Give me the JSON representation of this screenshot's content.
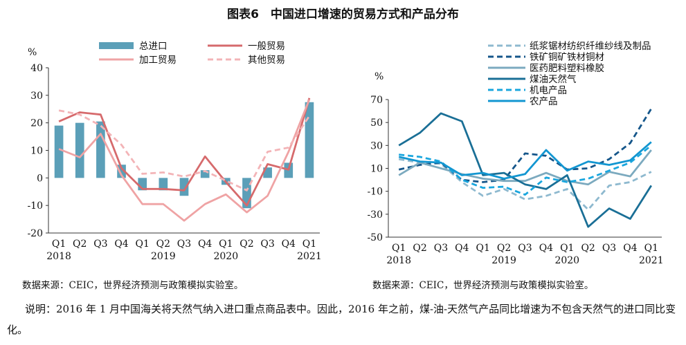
{
  "figure": {
    "title": "图表6　中国进口增速的贸易方式和产品分布",
    "note": "说明：2016 年 1 月中国海关将天然气纳入进口重点商品表中。因此，2016 年之前，煤-油-天然气产品同比增速为不包含天然气的进口同比变化。"
  },
  "chart_data": [
    {
      "type": "bar+line",
      "unit": "%",
      "categories": [
        "Q1",
        "Q2",
        "Q3",
        "Q4",
        "Q1",
        "Q2",
        "Q3",
        "Q4",
        "Q1",
        "Q2",
        "Q3",
        "Q4",
        "Q1"
      ],
      "year_labels": [
        {
          "index": 0,
          "label": "2018"
        },
        {
          "index": 5,
          "label": "2019"
        },
        {
          "index": 8,
          "label": "2020"
        },
        {
          "index": 12,
          "label": "2021"
        }
      ],
      "ylim": [
        -20,
        40
      ],
      "yticks": [
        -20,
        -10,
        0,
        10,
        20,
        30,
        40
      ],
      "bars": {
        "name": "总进口",
        "color": "#5b9fb8",
        "values": [
          19,
          20,
          20.5,
          4.8,
          -4.5,
          -4.5,
          -6.5,
          2.8,
          -2.5,
          -11,
          3.8,
          5.5,
          27.5
        ]
      },
      "series": [
        {
          "name": "一般贸易",
          "color": "#d66a6c",
          "dash": false,
          "values": [
            20.5,
            23.8,
            23,
            3.5,
            -4,
            -4,
            -4.5,
            7.8,
            -1.5,
            -10,
            5,
            3,
            29
          ]
        },
        {
          "name": "加工贸易",
          "color": "#efa3a4",
          "dash": false,
          "values": [
            10.5,
            7.5,
            16,
            1,
            -9.5,
            -9.5,
            -15.5,
            -9.5,
            -6,
            -12.5,
            -6.5,
            9.5,
            28.5
          ]
        },
        {
          "name": "其他贸易",
          "color": "#f3b4b7",
          "dash": true,
          "values": [
            24.5,
            23,
            19,
            12,
            1.5,
            2,
            0.5,
            2.5,
            -1,
            -4.5,
            9.5,
            11,
            22.5
          ]
        }
      ],
      "legend": [
        "总进口",
        "一般贸易",
        "加工贸易",
        "其他贸易"
      ],
      "source": "数据来源：CEIC，世界经济预测与政策模拟实验室。"
    },
    {
      "type": "line",
      "unit": "%",
      "categories": [
        "Q1",
        "Q2",
        "Q3",
        "Q4",
        "Q1",
        "Q2",
        "Q3",
        "Q4",
        "Q1",
        "Q2",
        "Q3",
        "Q4",
        "Q1"
      ],
      "year_labels": [
        {
          "index": 0,
          "label": "2018"
        },
        {
          "index": 5,
          "label": "2019"
        },
        {
          "index": 8,
          "label": "2020"
        },
        {
          "index": 12,
          "label": "2021"
        }
      ],
      "ylim": [
        -50,
        70
      ],
      "yticks": [
        -50,
        -30,
        -10,
        10,
        30,
        50,
        70
      ],
      "series": [
        {
          "name": "纸浆锯材纺织纤维纱线及制品",
          "color": "#8eb9cf",
          "dash": true,
          "values": [
            18,
            15,
            14,
            -2,
            -14,
            -8,
            -17,
            -14,
            -8,
            -26,
            -5,
            -2,
            7
          ]
        },
        {
          "name": "铁矿铜矿铁材铜材",
          "color": "#15568a",
          "dash": true,
          "values": [
            9,
            13,
            15,
            0,
            -2,
            0,
            23,
            21,
            9,
            10,
            18,
            32,
            62
          ]
        },
        {
          "name": "医药肥料塑料橡胶",
          "color": "#7caabf",
          "dash": false,
          "values": [
            4,
            15,
            10,
            5,
            1,
            -1,
            -1,
            6,
            -1,
            -4,
            7,
            3,
            26
          ]
        },
        {
          "name": "煤油天然气",
          "color": "#1a6f96",
          "dash": false,
          "values": [
            30,
            41,
            58,
            51,
            4,
            6,
            -4,
            -8,
            4,
            -41,
            -25,
            -34,
            -5
          ]
        },
        {
          "name": "机电产品",
          "color": "#19a6de",
          "dash": true,
          "values": [
            22,
            20,
            16,
            0,
            -7,
            -6,
            -13,
            2,
            -2,
            1,
            8,
            15,
            30
          ]
        },
        {
          "name": "农产品",
          "color": "#1296d1",
          "dash": false,
          "values": [
            20,
            16,
            15,
            4,
            6,
            1,
            5,
            26,
            8,
            16,
            13,
            17,
            33
          ]
        }
      ],
      "legend": [
        "纸浆锯材纺织纤维纱线及制品",
        "铁矿铜矿铁材铜材",
        "医药肥料塑料橡胶",
        "煤油天然气",
        "机电产品",
        "农产品"
      ],
      "source": "数据来源：CEIC，世界经济预测与政策模拟实验室。"
    }
  ]
}
